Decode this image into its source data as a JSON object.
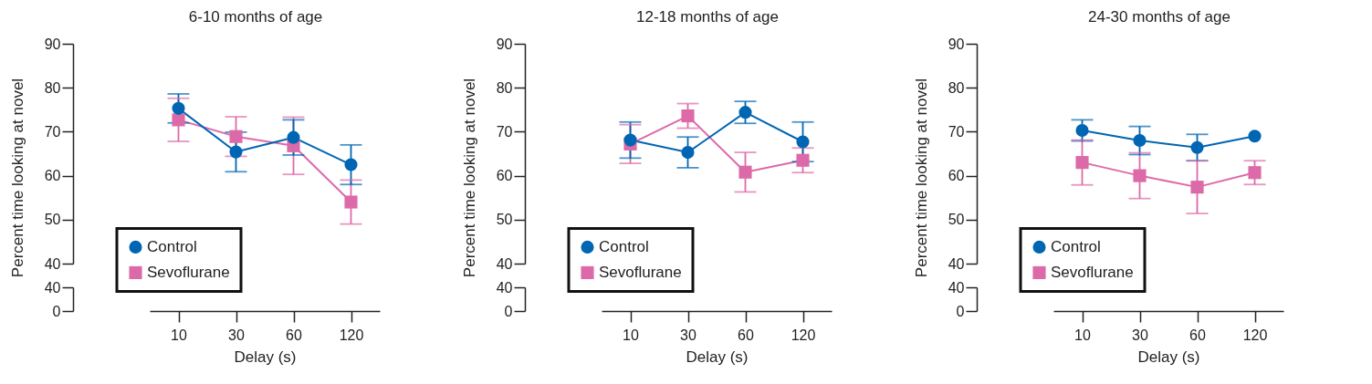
{
  "chart_data": [
    {
      "type": "line",
      "title": "6-10 months of age",
      "ylabel": "Percent time looking at novel",
      "categories": [
        "10",
        "30",
        "60",
        "120"
      ],
      "ylim": [
        40,
        90
      ],
      "yticks": [
        40,
        50,
        60,
        70,
        80,
        90
      ],
      "tick_labels": "y",
      "legend": "bottom left",
      "series": [
        {
          "name": "Control",
          "color": "#0066b3",
          "marker": "circle",
          "values": [
            75.3,
            65.4,
            68.7,
            62.5
          ],
          "errors": [
            3.3,
            4.5,
            4,
            4.5
          ]
        },
        {
          "name": "Sevoflurane",
          "color": "#dd6aa8",
          "marker": "square",
          "values": [
            72.7,
            68.9,
            66.8,
            54.0
          ],
          "errors": [
            4.9,
            4.5,
            6.5,
            5
          ]
        }
      ]
    },
    {
      "type": "line",
      "xlabel": "Delay (s)",
      "categories": [
        "10",
        "30",
        "60",
        "120"
      ],
      "ylim": [
        0,
        40
      ],
      "yticks": [
        0,
        40
      ]
    },
    {
      "type": "line",
      "title": "12-18 months of age",
      "ylabel": "Percent time looking at novel",
      "categories": [
        "10",
        "30",
        "60",
        "120"
      ],
      "ylim": [
        40,
        90
      ],
      "yticks": [
        40,
        50,
        60,
        70,
        80,
        90
      ],
      "tick_labels": "y",
      "legend": "bottom left",
      "series": [
        {
          "name": "Control",
          "color": "#0066b3",
          "marker": "circle",
          "values": [
            68.1,
            65.3,
            74.4,
            67.7
          ],
          "errors": [
            4.1,
            3.5,
            2.5,
            4.5
          ]
        },
        {
          "name": "Sevoflurane",
          "color": "#dd6aa8",
          "marker": "square",
          "values": [
            67.2,
            73.6,
            60.8,
            63.5
          ],
          "errors": [
            4.4,
            2.8,
            4.5,
            2.8
          ]
        }
      ]
    },
    {
      "type": "line",
      "xlabel": "Delay (s)",
      "categories": [
        "10",
        "30",
        "60",
        "120"
      ],
      "ylim": [
        0,
        40
      ],
      "yticks": [
        0,
        40
      ]
    },
    {
      "type": "line",
      "title": "24-30 months of age",
      "ylabel": "Percent time looking at novel",
      "categories": [
        "10",
        "30",
        "60",
        "120"
      ],
      "ylim": [
        40,
        90
      ],
      "yticks": [
        40,
        50,
        60,
        70,
        80,
        90
      ],
      "tick_labels": "y",
      "legend": "bottom left",
      "series": [
        {
          "name": "Control",
          "color": "#0066b3",
          "marker": "circle",
          "values": [
            70.3,
            68.0,
            66.4,
            69.0
          ],
          "errors": [
            2.4,
            3.2,
            3,
            null
          ]
        },
        {
          "name": "Sevoflurane",
          "color": "#dd6aa8",
          "marker": "square",
          "values": [
            63.0,
            60.0,
            57.4,
            60.7
          ],
          "errors": [
            5.1,
            5.2,
            6,
            2.7
          ]
        }
      ]
    },
    {
      "type": "line",
      "xlabel": "Delay (s)",
      "categories": [
        "10",
        "30",
        "60",
        "120"
      ],
      "ylim": [
        0,
        40
      ],
      "yticks": [
        0,
        40
      ]
    }
  ]
}
